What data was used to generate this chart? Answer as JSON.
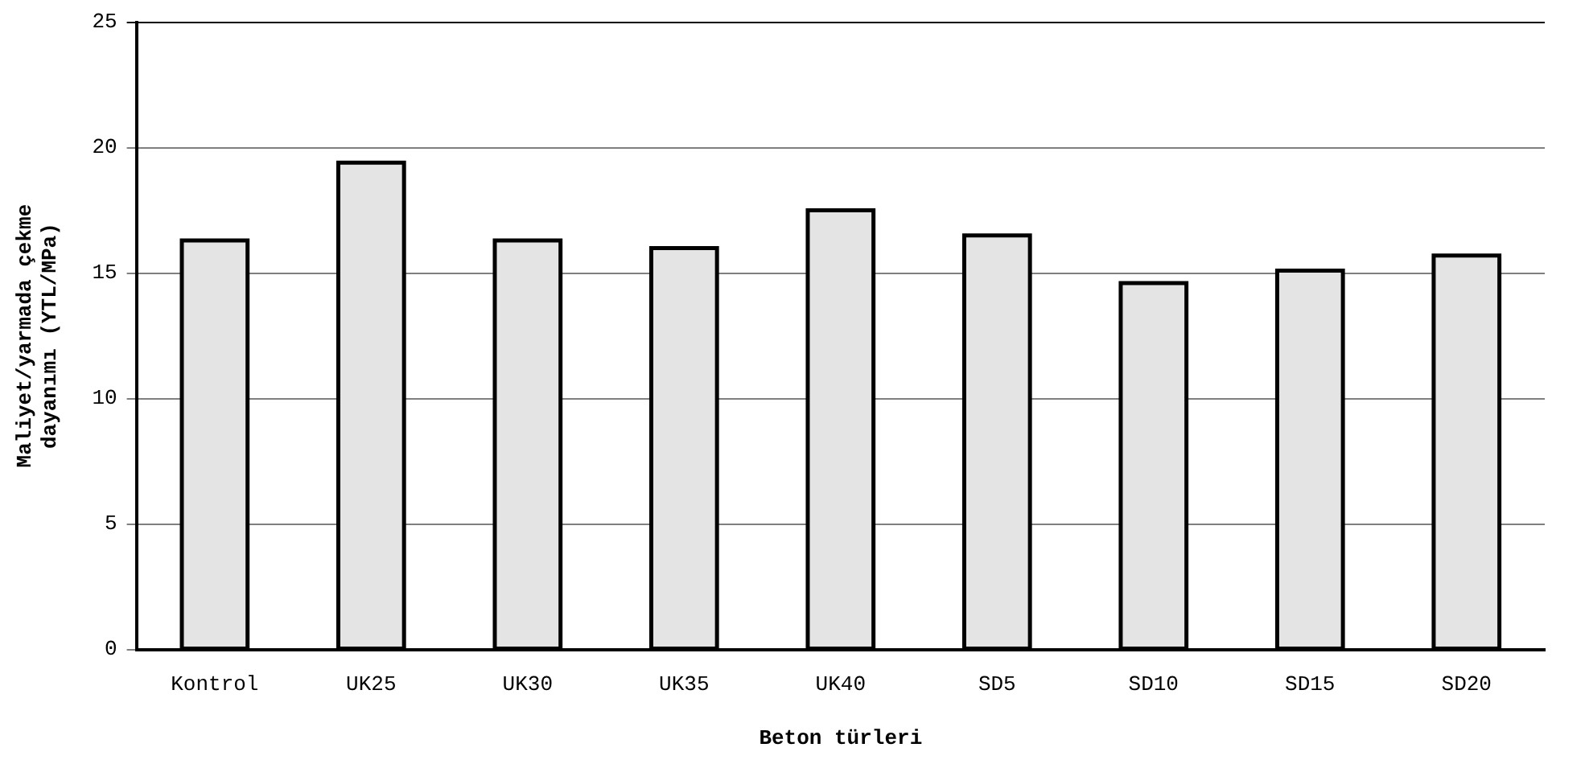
{
  "chart_data": {
    "type": "bar",
    "xlabel": "Beton türleri",
    "ylabel": "Maliyet/yarmada çekme dayanımı (YTL/MPa)",
    "categories": [
      "Kontrol",
      "UK25",
      "UK30",
      "UK35",
      "UK40",
      "SD5",
      "SD10",
      "SD15",
      "SD20"
    ],
    "values": [
      16.3,
      19.4,
      16.3,
      16.0,
      17.5,
      16.5,
      14.6,
      15.1,
      15.7
    ],
    "color": "#e4e4e4",
    "ylim": [
      0,
      25
    ],
    "yticks": [
      0,
      5,
      10,
      15,
      20,
      25
    ],
    "grid": "y",
    "legend": false
  }
}
